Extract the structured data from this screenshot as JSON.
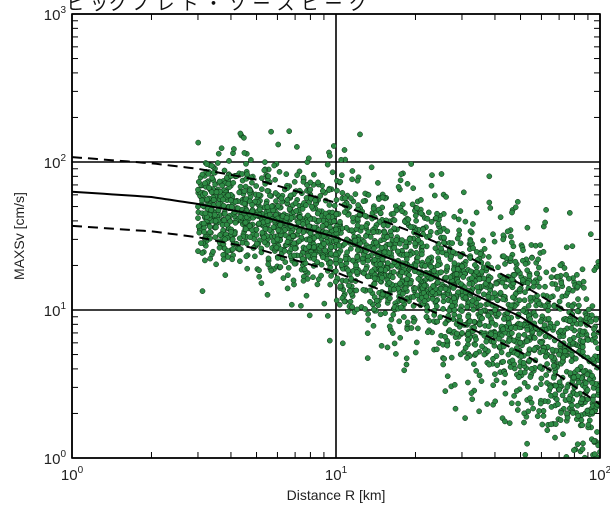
{
  "header": {
    "partial_title": "ヒ ック ノ レ ト ・ ソ ー ス ヒ ー ク"
  },
  "chart_data": {
    "type": "scatter",
    "title": "",
    "xlabel": "Distance R [km]",
    "ylabel": "MAXSv [cm/s]",
    "xscale": "log",
    "yscale": "log",
    "xlim": [
      1,
      100
    ],
    "ylim": [
      1,
      1000
    ],
    "grid": "major",
    "x_ticks": [
      {
        "value": 1,
        "base": "10",
        "exp": "0"
      },
      {
        "value": 10,
        "base": "10",
        "exp": "1"
      },
      {
        "value": 100,
        "base": "10",
        "exp": "2"
      }
    ],
    "y_ticks": [
      {
        "value": 1,
        "base": "10",
        "exp": "0"
      },
      {
        "value": 10,
        "base": "10",
        "exp": "1"
      },
      {
        "value": 100,
        "base": "10",
        "exp": "2"
      },
      {
        "value": 1000,
        "base": "10",
        "exp": "3"
      }
    ],
    "scatter_color": "#2e8b45",
    "scatter_edge": "#0b2a12",
    "scatter_samples": [
      [
        3.0,
        50
      ],
      [
        3.0,
        25
      ],
      [
        3.2,
        45
      ],
      [
        3.5,
        40
      ],
      [
        3.8,
        30
      ],
      [
        4.0,
        55
      ],
      [
        4.2,
        28
      ],
      [
        4.5,
        45
      ],
      [
        5.0,
        35
      ],
      [
        5.5,
        40
      ],
      [
        6.0,
        30
      ],
      [
        6.5,
        42
      ],
      [
        7.0,
        26
      ],
      [
        7.5,
        38
      ],
      [
        8.0,
        33
      ],
      [
        9.0,
        28
      ],
      [
        10.0,
        35
      ],
      [
        10.0,
        22
      ],
      [
        11.0,
        30
      ],
      [
        12.0,
        18
      ],
      [
        13.0,
        25
      ],
      [
        14.0,
        15
      ],
      [
        15.0,
        22
      ],
      [
        16.0,
        12
      ],
      [
        18.0,
        20
      ],
      [
        20.0,
        14
      ],
      [
        21.0,
        45
      ],
      [
        22.0,
        9
      ],
      [
        25.0,
        18
      ],
      [
        28.0,
        12
      ],
      [
        30.0,
        7
      ],
      [
        32.0,
        15
      ],
      [
        35.0,
        8
      ],
      [
        40.0,
        10
      ],
      [
        43.0,
        30
      ],
      [
        45.0,
        5
      ],
      [
        50.0,
        8
      ],
      [
        55.0,
        4
      ],
      [
        60.0,
        6
      ],
      [
        65.0,
        3
      ],
      [
        70.0,
        5
      ],
      [
        75.0,
        2
      ],
      [
        80.0,
        3
      ],
      [
        85.0,
        1.8
      ],
      [
        90.0,
        2.5
      ],
      [
        95.0,
        1.3
      ],
      [
        100.0,
        1.1
      ]
    ],
    "curves": [
      {
        "name": "",
        "style": "solid",
        "points": [
          [
            1,
            63
          ],
          [
            2,
            58
          ],
          [
            3,
            52
          ],
          [
            5,
            44
          ],
          [
            10,
            31
          ],
          [
            20,
            19
          ],
          [
            30,
            14
          ],
          [
            50,
            9
          ],
          [
            70,
            6.2
          ],
          [
            100,
            4.0
          ]
        ]
      },
      {
        "name": "",
        "style": "dashed",
        "points": [
          [
            1,
            108
          ],
          [
            2,
            98
          ],
          [
            3,
            90
          ],
          [
            5,
            76
          ],
          [
            10,
            53
          ],
          [
            20,
            33
          ],
          [
            30,
            24
          ],
          [
            50,
            15
          ],
          [
            70,
            10.5
          ],
          [
            100,
            7.0
          ]
        ]
      },
      {
        "name": "",
        "style": "dashed",
        "points": [
          [
            1,
            37
          ],
          [
            2,
            34
          ],
          [
            3,
            31
          ],
          [
            5,
            26
          ],
          [
            10,
            18
          ],
          [
            20,
            11
          ],
          [
            30,
            8
          ],
          [
            50,
            5.2
          ],
          [
            70,
            3.6
          ],
          [
            100,
            2.3
          ]
        ]
      }
    ]
  }
}
